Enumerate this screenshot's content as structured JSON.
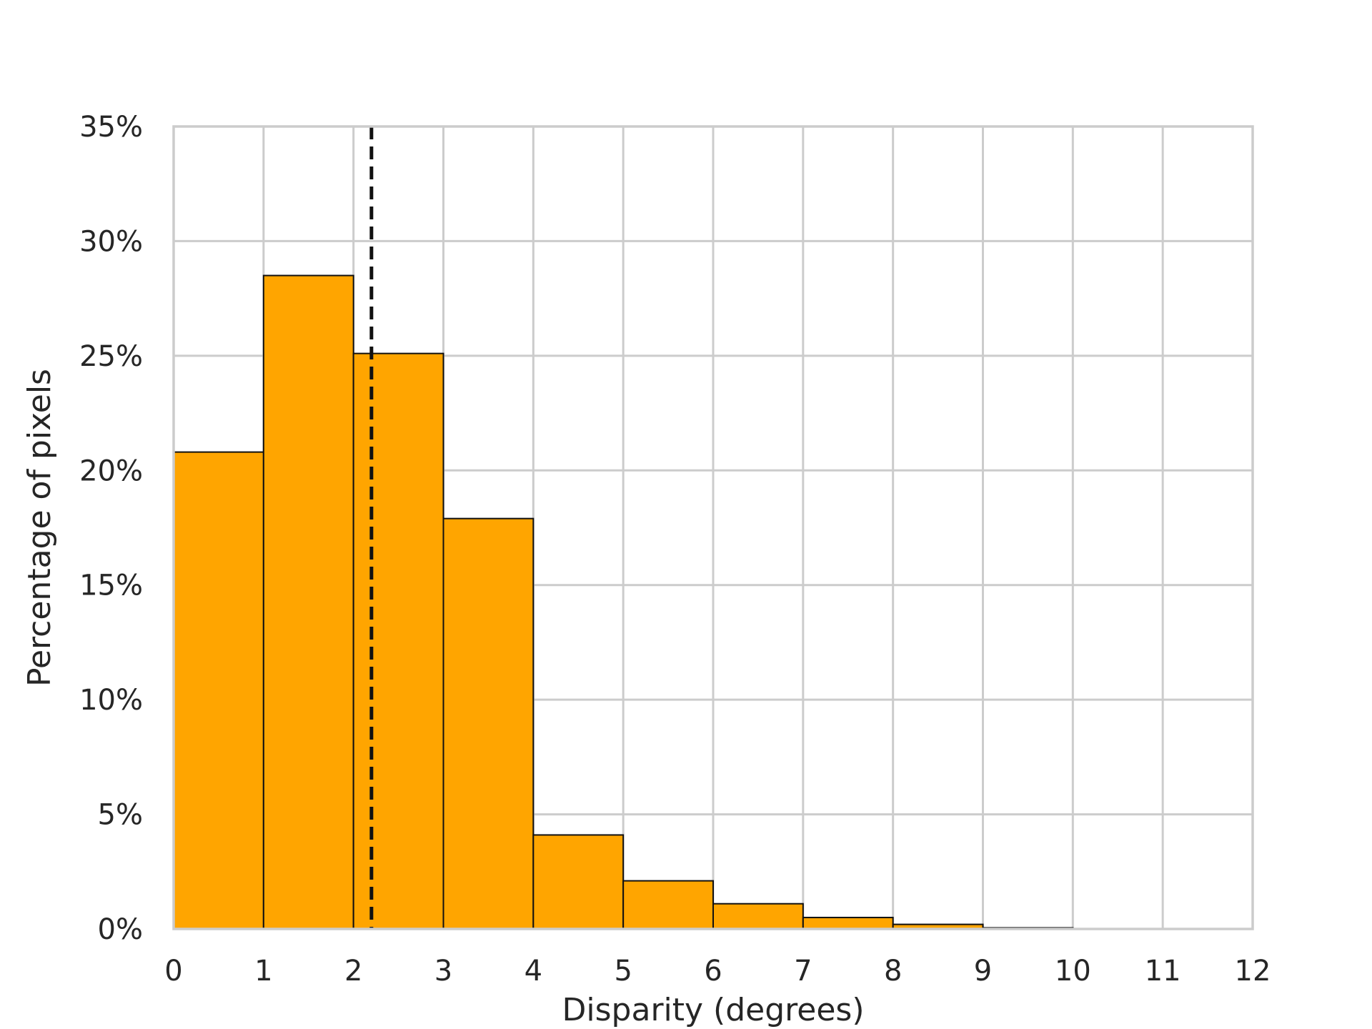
{
  "chart_data": {
    "type": "bar",
    "subtype": "histogram",
    "title": "",
    "xlabel": "Disparity (degrees)",
    "ylabel": "Percentage of pixels",
    "xlim": [
      0,
      12
    ],
    "ylim": [
      0,
      35
    ],
    "x_ticks": [
      0,
      1,
      2,
      3,
      4,
      5,
      6,
      7,
      8,
      9,
      10,
      11,
      12
    ],
    "x_tick_labels": [
      "0",
      "1",
      "2",
      "3",
      "4",
      "5",
      "6",
      "7",
      "8",
      "9",
      "10",
      "11",
      "12"
    ],
    "y_ticks": [
      0,
      5,
      10,
      15,
      20,
      25,
      30,
      35
    ],
    "y_tick_labels": [
      "0%",
      "5%",
      "10%",
      "15%",
      "20%",
      "25%",
      "30%",
      "35%"
    ],
    "bins": [
      {
        "x0": 0,
        "x1": 1,
        "value": 20.8
      },
      {
        "x0": 1,
        "x1": 2,
        "value": 28.5
      },
      {
        "x0": 2,
        "x1": 3,
        "value": 25.1
      },
      {
        "x0": 3,
        "x1": 4,
        "value": 17.9
      },
      {
        "x0": 4,
        "x1": 5,
        "value": 4.1
      },
      {
        "x0": 5,
        "x1": 6,
        "value": 2.1
      },
      {
        "x0": 6,
        "x1": 7,
        "value": 1.1
      },
      {
        "x0": 7,
        "x1": 8,
        "value": 0.5
      },
      {
        "x0": 8,
        "x1": 9,
        "value": 0.2
      },
      {
        "x0": 9,
        "x1": 10,
        "value": 0.05
      },
      {
        "x0": 10,
        "x1": 11,
        "value": 0.0
      },
      {
        "x0": 11,
        "x1": 12,
        "value": 0.0
      }
    ],
    "reference_line": {
      "x": 2.2,
      "style": "dashed",
      "color": "#111111"
    },
    "bar_color": "#FFA500",
    "edge_color": "#111111",
    "grid": true,
    "grid_color": "#cccccc",
    "legend": "none"
  }
}
